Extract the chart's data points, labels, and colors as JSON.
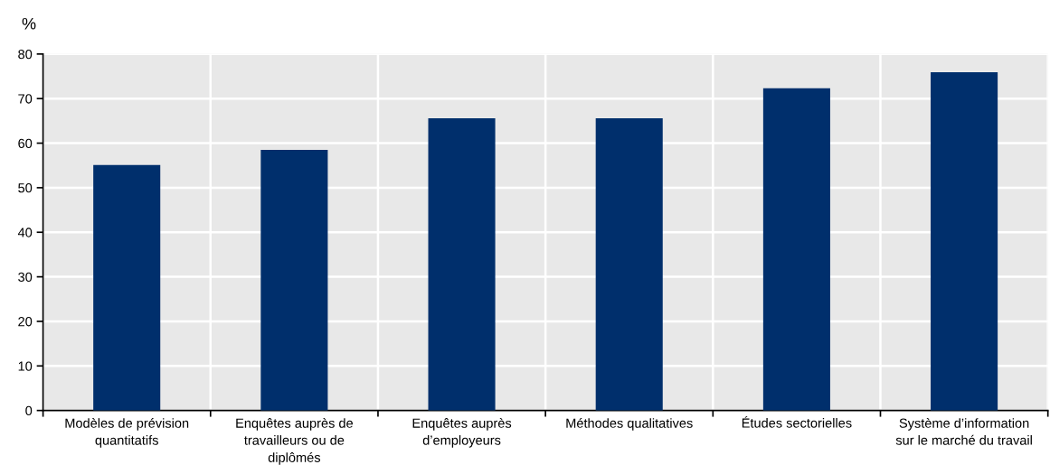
{
  "chart_data": {
    "type": "bar",
    "ylabel": "%",
    "categories": [
      "Modèles de prévision\nquantitatifs",
      "Enquêtes auprès de\ntravailleurs ou de\ndiplômés",
      "Enquêtes auprès\nd’employeurs",
      "Méthodes qualitatives",
      "Études sectorielles",
      "Système d’information\nsur le marché du travail"
    ],
    "values": [
      55.1,
      58.5,
      65.6,
      65.6,
      72.3,
      75.9
    ],
    "color": "#002f6c",
    "ylim": [
      0,
      80
    ],
    "yticks": [
      0,
      10,
      20,
      30,
      40,
      50,
      60,
      70,
      80
    ],
    "grid": true,
    "legend": false
  }
}
